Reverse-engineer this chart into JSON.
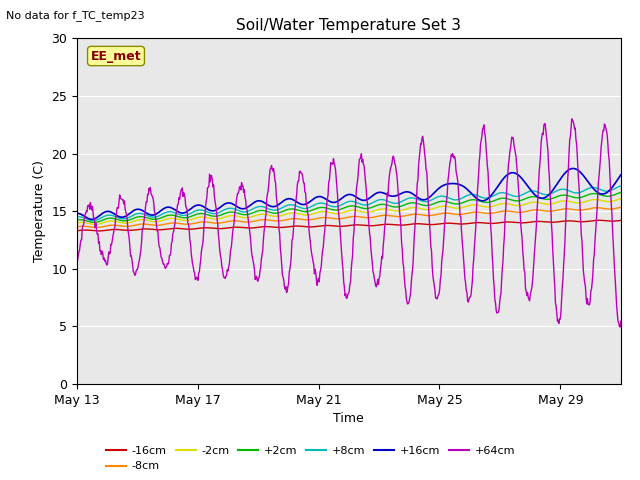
{
  "title": "Soil/Water Temperature Set 3",
  "subtitle": "No data for f_TC_temp23",
  "xlabel": "Time",
  "ylabel": "Temperature (C)",
  "xlim_days": [
    0,
    18
  ],
  "ylim": [
    0,
    30
  ],
  "yticks": [
    0,
    5,
    10,
    15,
    20,
    25,
    30
  ],
  "xtick_labels": [
    "May 13",
    "May 17",
    "May 21",
    "May 25",
    "May 29"
  ],
  "xtick_positions": [
    0,
    4,
    8,
    12,
    16
  ],
  "plot_bg_color": "#e8e8e8",
  "legend_box_color": "#ffff99",
  "legend_box_edge": "#888800",
  "ee_met_text_color": "#880000",
  "series": [
    {
      "label": "-16cm",
      "color": "#cc0000"
    },
    {
      "label": "-8cm",
      "color": "#ff8800"
    },
    {
      "label": "-2cm",
      "color": "#dddd00"
    },
    {
      "label": "+2cm",
      "color": "#00bb00"
    },
    {
      "label": "+8cm",
      "color": "#00bbbb"
    },
    {
      "label": "+16cm",
      "color": "#0000cc"
    },
    {
      "label": "+64cm",
      "color": "#bb00bb"
    }
  ],
  "figsize": [
    6.4,
    4.8
  ],
  "dpi": 100
}
